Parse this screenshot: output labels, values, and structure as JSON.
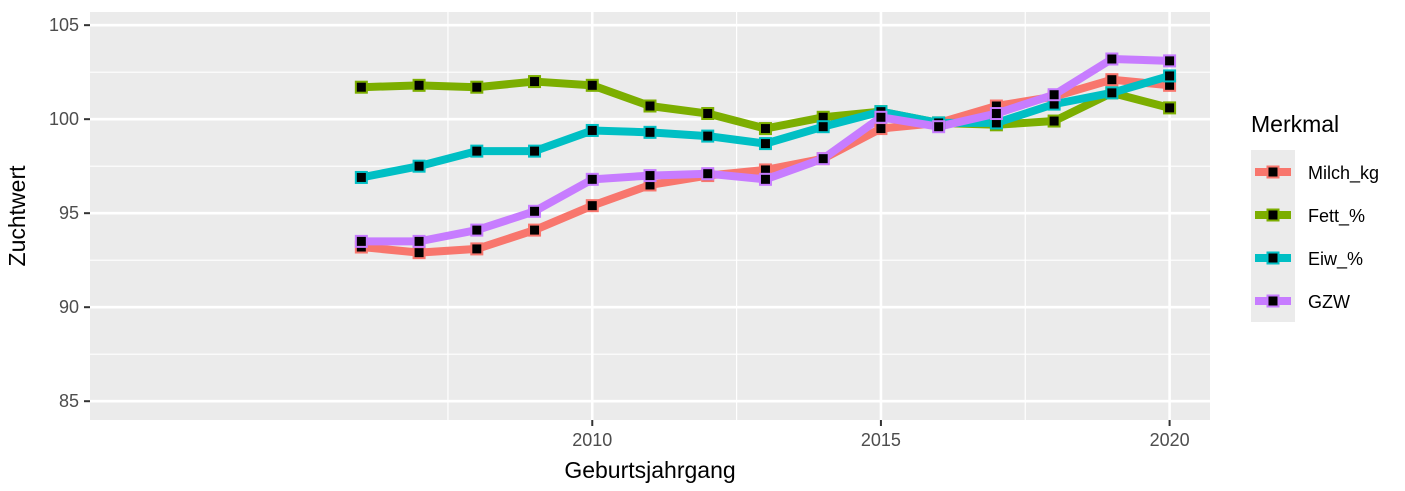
{
  "chart_data": {
    "type": "line",
    "title": "",
    "xlabel": "Geburtsjahrgang",
    "ylabel": "Zuchtwert",
    "x": [
      2006,
      2007,
      2008,
      2009,
      2010,
      2011,
      2012,
      2013,
      2014,
      2015,
      2016,
      2017,
      2018,
      2019,
      2020
    ],
    "xlim": [
      2001.3,
      2020.7
    ],
    "ylim": [
      84.0,
      105.7
    ],
    "xticks": [
      2010,
      2015,
      2020
    ],
    "xtick_labels": [
      "2010",
      "2015",
      "2020"
    ],
    "yticks": [
      85,
      90,
      95,
      100,
      105
    ],
    "ytick_labels": [
      "85",
      "90",
      "95",
      "100",
      "105"
    ],
    "grid": true,
    "legend": {
      "title": "Merkmal",
      "position": "right"
    },
    "series": [
      {
        "name": "Milch_kg",
        "color": "#F8766D",
        "values": [
          93.2,
          92.9,
          93.1,
          94.1,
          95.4,
          96.5,
          97.0,
          97.3,
          97.9,
          99.5,
          99.8,
          100.7,
          101.2,
          102.1,
          101.8
        ]
      },
      {
        "name": "Fett_%",
        "color": "#7CAE00",
        "values": [
          101.7,
          101.8,
          101.7,
          102.0,
          101.8,
          100.7,
          100.3,
          99.5,
          100.1,
          100.4,
          99.8,
          99.7,
          99.9,
          101.4,
          100.6
        ]
      },
      {
        "name": "Eiw_%",
        "color": "#00BFC4",
        "values": [
          96.9,
          97.5,
          98.3,
          98.3,
          99.4,
          99.3,
          99.1,
          98.7,
          99.6,
          100.4,
          99.8,
          99.8,
          100.8,
          101.4,
          102.3
        ]
      },
      {
        "name": "GZW",
        "color": "#C77CFF",
        "values": [
          93.5,
          93.5,
          94.1,
          95.1,
          96.8,
          97.0,
          97.1,
          96.8,
          97.9,
          100.1,
          99.6,
          100.3,
          101.3,
          103.2,
          103.1
        ]
      }
    ]
  }
}
